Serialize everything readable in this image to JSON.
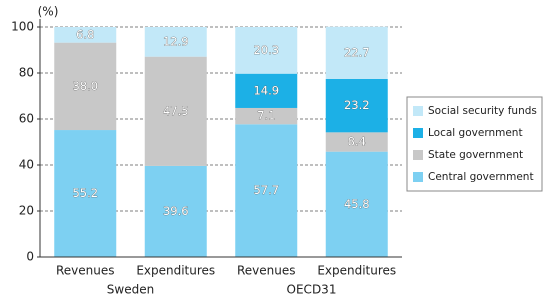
{
  "chart_data": {
    "type": "stacked-bar",
    "y_label": "(%)",
    "categories": [
      "Revenues",
      "Expenditures",
      "Revenues",
      "Expenditures"
    ],
    "groups": [
      {
        "name": "Sweden",
        "categories": [
          0,
          1
        ]
      },
      {
        "name": "OECD31",
        "categories": [
          2,
          3
        ]
      }
    ],
    "series": [
      {
        "name": "Central government",
        "color": "#7dd0f2",
        "values": [
          55.2,
          39.6,
          57.7,
          45.8
        ],
        "value_labels": [
          "55.2",
          "39.6",
          "57.7",
          "45.8"
        ]
      },
      {
        "name": "State government",
        "color": "#c8c8c8",
        "values": [
          38.0,
          47.5,
          7.1,
          8.4
        ],
        "value_labels": [
          "38.0",
          "47.5",
          "7.1",
          "8.4"
        ]
      },
      {
        "name": "Local government",
        "color": "#1cb0e6",
        "values": [
          null,
          null,
          14.9,
          23.2
        ],
        "value_labels": [
          null,
          null,
          "14.9",
          "23.2"
        ]
      },
      {
        "name": "Social security funds",
        "color": "#c2e8f8",
        "values": [
          6.8,
          12.9,
          20.3,
          22.7
        ],
        "value_labels": [
          "6.8",
          "12.9",
          "20.3",
          "22.7"
        ]
      }
    ],
    "ylim": [
      0,
      100
    ],
    "yticks": [
      0,
      20,
      40,
      60,
      80,
      100
    ],
    "grid": true,
    "legend": "right"
  }
}
